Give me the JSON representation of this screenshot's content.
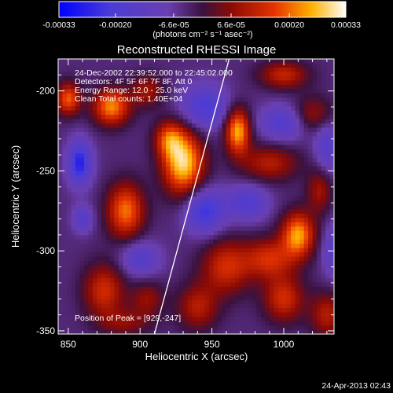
{
  "chart_data": {
    "type": "heatmap",
    "title": "Reconstructed RHESSI Image",
    "xlabel": "Heliocentric X (arcsec)",
    "ylabel": "Heliocentric Y (arcsec)",
    "xlim": [
      843,
      1035
    ],
    "ylim": [
      -352,
      -180
    ],
    "xticks": [
      850,
      900,
      950,
      1000
    ],
    "yticks": [
      -200,
      -250,
      -300,
      -350
    ],
    "colorbar": {
      "range": [
        -0.00033,
        0.00033
      ],
      "tick_labels": [
        "-0.00033",
        "-0.00020",
        "-6.6e-05",
        "6.6e-05",
        "0.00020",
        "0.00033"
      ],
      "unit_label": "(photons cm⁻² s⁻¹ asec⁻²)"
    },
    "info_lines": [
      "24-Dec-2002 22:39:52.000 to 22:45:02.000",
      "Detectors: 4F 5F 6F 7F 8F, Att 0",
      "Energy Range: 12.0 - 25.0 keV",
      "Clean     Total counts: 1.40E+04"
    ],
    "peak_label": "Position of Peak = [929,-247]",
    "limb_line": {
      "from": [
        910,
        -352
      ],
      "to": [
        962,
        -180
      ]
    },
    "blobs": [
      {
        "x": 930,
        "y": -245,
        "sx": 10,
        "sy": 14,
        "a": 1.0
      },
      {
        "x": 920,
        "y": -230,
        "sx": 7,
        "sy": 8,
        "a": 0.55
      },
      {
        "x": 880,
        "y": -210,
        "sx": 9,
        "sy": 8,
        "a": 0.8
      },
      {
        "x": 850,
        "y": -205,
        "sx": 6,
        "sy": 7,
        "a": 0.7
      },
      {
        "x": 905,
        "y": -200,
        "sx": 8,
        "sy": 7,
        "a": 0.4
      },
      {
        "x": 968,
        "y": -225,
        "sx": 6,
        "sy": 10,
        "a": 0.9
      },
      {
        "x": 1000,
        "y": -190,
        "sx": 12,
        "sy": 6,
        "a": 0.5
      },
      {
        "x": 1020,
        "y": -215,
        "sx": 10,
        "sy": 8,
        "a": 0.4
      },
      {
        "x": 990,
        "y": -245,
        "sx": 14,
        "sy": 8,
        "a": 0.45
      },
      {
        "x": 1010,
        "y": -290,
        "sx": 8,
        "sy": 10,
        "a": 0.85
      },
      {
        "x": 990,
        "y": -305,
        "sx": 12,
        "sy": 9,
        "a": 0.55
      },
      {
        "x": 960,
        "y": -310,
        "sx": 12,
        "sy": 12,
        "a": 0.55
      },
      {
        "x": 940,
        "y": -335,
        "sx": 10,
        "sy": 10,
        "a": 0.45
      },
      {
        "x": 1000,
        "y": -330,
        "sx": 10,
        "sy": 10,
        "a": 0.55
      },
      {
        "x": 1030,
        "y": -340,
        "sx": 8,
        "sy": 10,
        "a": 0.45
      },
      {
        "x": 890,
        "y": -275,
        "sx": 9,
        "sy": 12,
        "a": 0.75
      },
      {
        "x": 875,
        "y": -325,
        "sx": 10,
        "sy": 12,
        "a": 0.55
      },
      {
        "x": 905,
        "y": -330,
        "sx": 8,
        "sy": 8,
        "a": 0.35
      },
      {
        "x": 890,
        "y": -345,
        "sx": 12,
        "sy": 6,
        "a": 0.3
      },
      {
        "x": 1025,
        "y": -262,
        "sx": 6,
        "sy": 10,
        "a": 0.4
      },
      {
        "x": 858,
        "y": -245,
        "sx": 6,
        "sy": 10,
        "a": -0.7
      },
      {
        "x": 860,
        "y": -280,
        "sx": 5,
        "sy": 6,
        "a": -0.4
      },
      {
        "x": 945,
        "y": -210,
        "sx": 12,
        "sy": 10,
        "a": -0.5
      },
      {
        "x": 945,
        "y": -275,
        "sx": 10,
        "sy": 10,
        "a": -0.6
      },
      {
        "x": 1000,
        "y": -220,
        "sx": 12,
        "sy": 8,
        "a": -0.45
      },
      {
        "x": 975,
        "y": -270,
        "sx": 10,
        "sy": 8,
        "a": -0.45
      },
      {
        "x": 900,
        "y": -305,
        "sx": 10,
        "sy": 8,
        "a": -0.4
      },
      {
        "x": 1030,
        "y": -235,
        "sx": 6,
        "sy": 12,
        "a": -0.4
      },
      {
        "x": 1035,
        "y": -300,
        "sx": 6,
        "sy": 12,
        "a": -0.35
      }
    ]
  },
  "footer": {
    "timestamp": "24-Apr-2013 02:43"
  }
}
